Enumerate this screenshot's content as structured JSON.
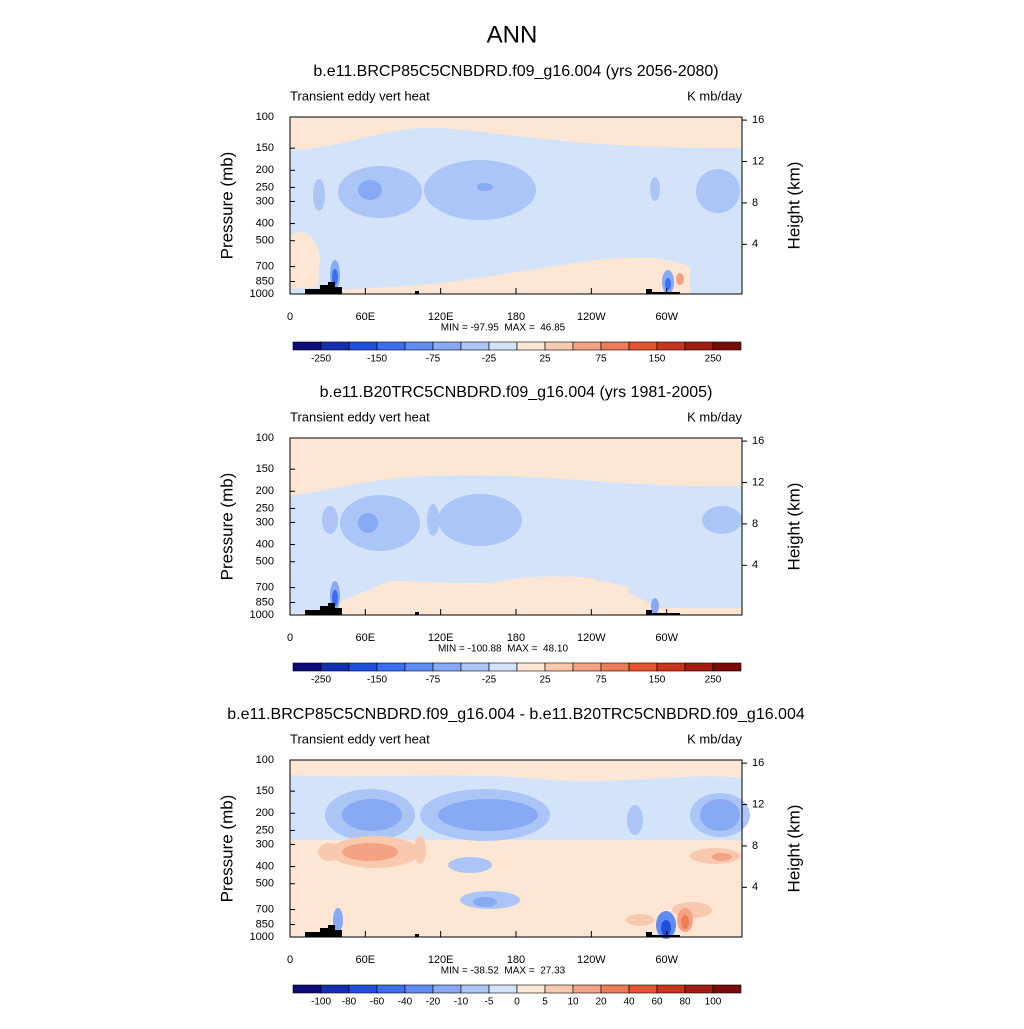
{
  "title": "ANN",
  "chart_data": [
    {
      "type": "contour",
      "title": "b.e11.BRCP85C5CNBDRD.f09_g16.004 (yrs 2056-2080)",
      "left_label": "Transient eddy vert heat",
      "right_label": "K mb/day",
      "ylabel": "Pressure (mb)",
      "y2label": "Height (km)",
      "ylim": [
        1000,
        100
      ],
      "log_y": true,
      "yticks": [
        100,
        150,
        200,
        250,
        300,
        400,
        500,
        700,
        850,
        1000
      ],
      "y2lim": [
        -0.8,
        16.3
      ],
      "y2ticks": [
        4,
        8,
        12,
        16
      ],
      "xlim": [
        0,
        360
      ],
      "xticks": [
        0,
        {
          "value": 60,
          "label": "60E"
        },
        {
          "value": 120,
          "label": "120E"
        },
        180,
        {
          "value": 240,
          "label": "120W"
        },
        {
          "value": 300,
          "label": "60W"
        }
      ],
      "stats": "MIN = -97.95  MAX =  46.85",
      "colorbar": {
        "colors": [
          "#0a0c78",
          "#1430b0",
          "#1e4fdf",
          "#3b6ef0",
          "#5f8cf2",
          "#88aaf4",
          "#acc5f7",
          "#d3e4fa",
          "#fde6d3",
          "#f9c9af",
          "#f3a384",
          "#ec7c57",
          "#e55531",
          "#c8351c",
          "#a01d10",
          "#7a0a06"
        ],
        "labels": [
          -250,
          -150,
          -75,
          -25,
          25,
          75,
          150,
          250
        ]
      }
    },
    {
      "type": "contour",
      "title": "b.e11.B20TRC5CNBDRD.f09_g16.004 (yrs 1981-2005)",
      "left_label": "Transient eddy vert heat",
      "right_label": "K mb/day",
      "ylabel": "Pressure (mb)",
      "y2label": "Height (km)",
      "ylim": [
        1000,
        100
      ],
      "log_y": true,
      "yticks": [
        100,
        150,
        200,
        250,
        300,
        400,
        500,
        700,
        850,
        1000
      ],
      "y2lim": [
        -0.8,
        16.3
      ],
      "y2ticks": [
        4,
        8,
        12,
        16
      ],
      "xlim": [
        0,
        360
      ],
      "xticks": [
        0,
        {
          "value": 60,
          "label": "60E"
        },
        {
          "value": 120,
          "label": "120E"
        },
        180,
        {
          "value": 240,
          "label": "120W"
        },
        {
          "value": 300,
          "label": "60W"
        }
      ],
      "stats": "MIN = -100.88  MAX =  48.10",
      "colorbar": {
        "colors": [
          "#0a0c78",
          "#1430b0",
          "#1e4fdf",
          "#3b6ef0",
          "#5f8cf2",
          "#88aaf4",
          "#acc5f7",
          "#d3e4fa",
          "#fde6d3",
          "#f9c9af",
          "#f3a384",
          "#ec7c57",
          "#e55531",
          "#c8351c",
          "#a01d10",
          "#7a0a06"
        ],
        "labels": [
          -250,
          -150,
          -75,
          -25,
          25,
          75,
          150,
          250
        ]
      }
    },
    {
      "type": "contour",
      "title": "b.e11.BRCP85C5CNBDRD.f09_g16.004 - b.e11.B20TRC5CNBDRD.f09_g16.004",
      "left_label": "Transient eddy vert heat",
      "right_label": "K mb/day",
      "ylabel": "Pressure (mb)",
      "y2label": "Height (km)",
      "ylim": [
        1000,
        100
      ],
      "log_y": true,
      "yticks": [
        100,
        150,
        200,
        250,
        300,
        400,
        500,
        700,
        850,
        1000
      ],
      "y2lim": [
        -0.8,
        16.3
      ],
      "y2ticks": [
        4,
        8,
        12,
        16
      ],
      "xlim": [
        0,
        360
      ],
      "xticks": [
        0,
        {
          "value": 60,
          "label": "60E"
        },
        {
          "value": 120,
          "label": "120E"
        },
        180,
        {
          "value": 240,
          "label": "120W"
        },
        {
          "value": 300,
          "label": "60W"
        }
      ],
      "stats": "MIN = -38.52  MAX =  27.33",
      "colorbar": {
        "colors": [
          "#0a0c78",
          "#1430b0",
          "#1e4fdf",
          "#3b6ef0",
          "#5f8cf2",
          "#88aaf4",
          "#acc5f7",
          "#d3e4fa",
          "#fde6d3",
          "#f9c9af",
          "#f3a384",
          "#ec7c57",
          "#e55531",
          "#c8351c",
          "#a01d10",
          "#7a0a06"
        ],
        "labels": [
          -100,
          -80,
          -60,
          -40,
          -20,
          -10,
          -5,
          0,
          5,
          10,
          20,
          40,
          60,
          80,
          100
        ]
      }
    }
  ]
}
